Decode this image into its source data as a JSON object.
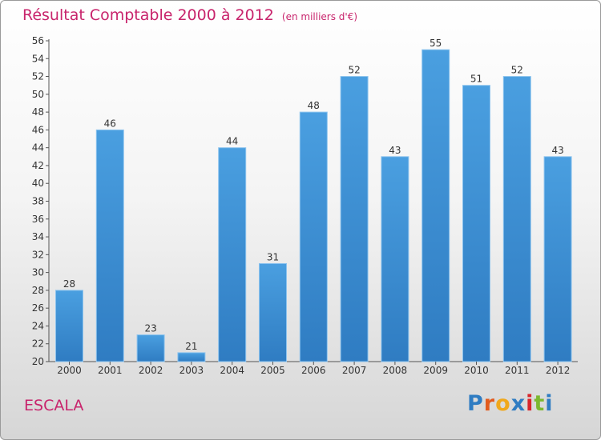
{
  "chart_data": {
    "type": "bar",
    "title": "Résultat Comptable 2000 à 2012",
    "unit": "(en milliers d'€)",
    "categories": [
      "2000",
      "2001",
      "2002",
      "2003",
      "2004",
      "2005",
      "2006",
      "2007",
      "2008",
      "2009",
      "2010",
      "2011",
      "2012"
    ],
    "values": [
      28,
      46,
      23,
      21,
      44,
      31,
      48,
      52,
      43,
      55,
      51,
      52,
      43
    ],
    "ylim": [
      20,
      56
    ],
    "ytick_step": 2,
    "grid": false,
    "xlabel": "",
    "ylabel": "",
    "bar_color": "#4a9fe0",
    "bar_color_dark": "#2f7cc2"
  },
  "location": "ESCALA",
  "brand": {
    "letters": [
      "P",
      "r",
      "o",
      "x",
      "i",
      "t",
      "i"
    ],
    "colors": [
      "#2f7cc2",
      "#e25b1d",
      "#f0a81c",
      "#2f7cc2",
      "#d9252a",
      "#7cb82f",
      "#2f7cc2"
    ]
  }
}
